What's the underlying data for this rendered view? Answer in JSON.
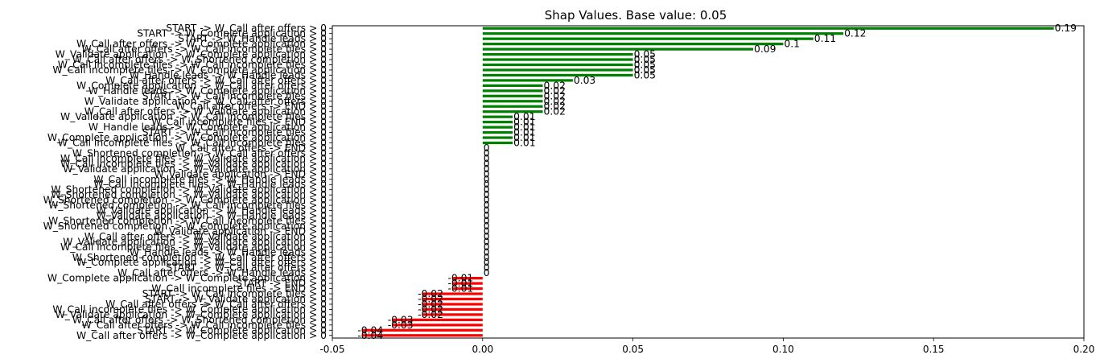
{
  "chart_data": {
    "type": "bar",
    "orientation": "horizontal",
    "title": "Shap Values. Base value: 0.05",
    "xlim": [
      -0.05,
      0.2
    ],
    "xticks": [
      "-0.05",
      "0.00",
      "0.05",
      "0.10",
      "0.15",
      "0.20"
    ],
    "xtick_values": [
      -0.05,
      0.0,
      0.05,
      0.1,
      0.15,
      0.2
    ],
    "positive_color": "#008000",
    "negative_color": "#ff0000",
    "grid": false,
    "bars": [
      {
        "label": "START -> W_Call after offers > 0",
        "value": 0.19,
        "value_label": "0.19"
      },
      {
        "label": "START -> W_Complete application > 0",
        "value": 0.12,
        "value_label": "0.12"
      },
      {
        "label": "START -> W_Handle leads > 0",
        "value": 0.11,
        "value_label": "0.11"
      },
      {
        "label": "W_Call after offers -> W_Complete application > 0",
        "value": 0.1,
        "value_label": "0.1"
      },
      {
        "label": "W_Call after offers -> W_Call incomplete files > 0",
        "value": 0.09,
        "value_label": "0.09"
      },
      {
        "label": "W_Validate application -> W_Complete application > 0",
        "value": 0.05,
        "value_label": "0.05"
      },
      {
        "label": "W_Call after offers -> W_Shortened completion > 0",
        "value": 0.05,
        "value_label": "0.05"
      },
      {
        "label": "W_Call incomplete files -> W_Call incomplete files > 0",
        "value": 0.05,
        "value_label": "0.05"
      },
      {
        "label": "W_Call incomplete files -> W_Complete application > 0",
        "value": 0.05,
        "value_label": "0.05"
      },
      {
        "label": "W_Handle leads -> W_Handle leads > 0",
        "value": 0.05,
        "value_label": "0.05"
      },
      {
        "label": "W_Call after offers -> W_Call after offers > 0",
        "value": 0.03,
        "value_label": "0.03"
      },
      {
        "label": "W_Complete application -> W_Call after offers > 0",
        "value": 0.02,
        "value_label": "0.02"
      },
      {
        "label": "W_Handle leads -> W_Complete application > 0",
        "value": 0.02,
        "value_label": "0.02"
      },
      {
        "label": "START -> W_Call incomplete files > 0",
        "value": 0.02,
        "value_label": "0.02"
      },
      {
        "label": "W_Validate application -> W_Call after offers > 0",
        "value": 0.02,
        "value_label": "0.02"
      },
      {
        "label": "W_Call after offers -> END > 0",
        "value": 0.02,
        "value_label": "0.02"
      },
      {
        "label": "W_Call after offers -> W_Validate application > 0",
        "value": 0.02,
        "value_label": "0.02"
      },
      {
        "label": "W_Validate application -> W_Call incomplete files > 0",
        "value": 0.01,
        "value_label": "0.01"
      },
      {
        "label": "W_Call incomplete files -> END > 0",
        "value": 0.01,
        "value_label": "0.01"
      },
      {
        "label": "W_Handle leads -> W_Complete application > 0",
        "value": 0.01,
        "value_label": "0.01"
      },
      {
        "label": "START -> W_Call incomplete files > 0",
        "value": 0.01,
        "value_label": "0.01"
      },
      {
        "label": "W_Complete application -> W_Complete application > 0",
        "value": 0.01,
        "value_label": "0.01"
      },
      {
        "label": "W_Call incomplete files -> W_Call incomplete files > 0",
        "value": 0.01,
        "value_label": "0.01"
      },
      {
        "label": "W_Call after offers -> END > 0",
        "value": 0,
        "value_label": "0"
      },
      {
        "label": "W_Shortened completion -> W_Call after offers > 0",
        "value": 0,
        "value_label": "0"
      },
      {
        "label": "W_Call incomplete files -> W_Validate application > 0",
        "value": 0,
        "value_label": "0"
      },
      {
        "label": "W_Call incomplete files -> W_Validate application > 0",
        "value": 0,
        "value_label": "0"
      },
      {
        "label": "W_Validate application -> W_Validate application > 0",
        "value": 0,
        "value_label": "0"
      },
      {
        "label": "W_Validate application -> END > 0",
        "value": 0,
        "value_label": "0"
      },
      {
        "label": "W_Call incomplete files -> W_Handle leads > 0",
        "value": 0,
        "value_label": "0"
      },
      {
        "label": "W_Call incomplete files -> W_Handle leads > 0",
        "value": 0,
        "value_label": "0"
      },
      {
        "label": "W_Shortened completion -> W_Validate application > 0",
        "value": 0,
        "value_label": "0"
      },
      {
        "label": "W_Shortened completion -> W_Validate application > 0",
        "value": 0,
        "value_label": "0"
      },
      {
        "label": "W_Shortened completion -> W_Complete application > 0",
        "value": 0,
        "value_label": "0"
      },
      {
        "label": "W_Shortened completion -> W_Call incomplete files > 0",
        "value": 0,
        "value_label": "0"
      },
      {
        "label": "W_Validate application -> W_Handle leads > 0",
        "value": 0,
        "value_label": "0"
      },
      {
        "label": "W_Validate application -> W_Handle leads > 0",
        "value": 0,
        "value_label": "0"
      },
      {
        "label": "W_Shortened completion -> W_Call incomplete files > 0",
        "value": 0,
        "value_label": "0"
      },
      {
        "label": "W_Shortened completion -> W_Complete application > 0",
        "value": 0,
        "value_label": "0"
      },
      {
        "label": "W_Validate application -> END > 0",
        "value": 0,
        "value_label": "0"
      },
      {
        "label": "W_Call after offers -> W_Validate application > 0",
        "value": 0,
        "value_label": "0"
      },
      {
        "label": "W_Validate application -> W_Validate application > 0",
        "value": 0,
        "value_label": "0"
      },
      {
        "label": "W_Call incomplete files -> W_Validate application > 0",
        "value": 0,
        "value_label": "0"
      },
      {
        "label": "W_Handle leads -> W_Handle leads > 0",
        "value": 0,
        "value_label": "0"
      },
      {
        "label": "W_Shortened completion -> W_Call after offers > 0",
        "value": 0,
        "value_label": "0"
      },
      {
        "label": "W_Complete application -> W_Call after offers > 0",
        "value": 0,
        "value_label": "0"
      },
      {
        "label": "START -> W_Call after offers > 0",
        "value": 0,
        "value_label": "0"
      },
      {
        "label": "W_Call after offers -> W_Handle leads > 0",
        "value": 0,
        "value_label": "0"
      },
      {
        "label": "W_Complete application -> W_Complete application > 0",
        "value": -0.01,
        "value_label": "-0.01"
      },
      {
        "label": "START -> END > 0",
        "value": -0.01,
        "value_label": "-0.01"
      },
      {
        "label": "W_Call incomplete files -> END > 0",
        "value": -0.01,
        "value_label": "-0.01"
      },
      {
        "label": "START -> W_Call incomplete files > 0",
        "value": -0.02,
        "value_label": "-0.02"
      },
      {
        "label": "START -> W_Validate application > 0",
        "value": -0.02,
        "value_label": "-0.02"
      },
      {
        "label": "W_Call after offers -> W_Call after offers > 0",
        "value": -0.02,
        "value_label": "-0.02"
      },
      {
        "label": "W_Call incomplete files -> W_Complete application > 0",
        "value": -0.02,
        "value_label": "-0.02"
      },
      {
        "label": "W_Validate application -> W_Complete application > 0",
        "value": -0.02,
        "value_label": "-0.02"
      },
      {
        "label": "W_Call after offers -> W_Shortened completion > 0",
        "value": -0.03,
        "value_label": "-0.03"
      },
      {
        "label": "W_Call after offers -> W_Call incomplete files > 0",
        "value": -0.03,
        "value_label": "-0.03"
      },
      {
        "label": "START -> W_Complete application > 0",
        "value": -0.04,
        "value_label": "-0.04"
      },
      {
        "label": "W_Call after offers -> W_Complete application > 0",
        "value": -0.04,
        "value_label": "-0.04"
      }
    ]
  }
}
